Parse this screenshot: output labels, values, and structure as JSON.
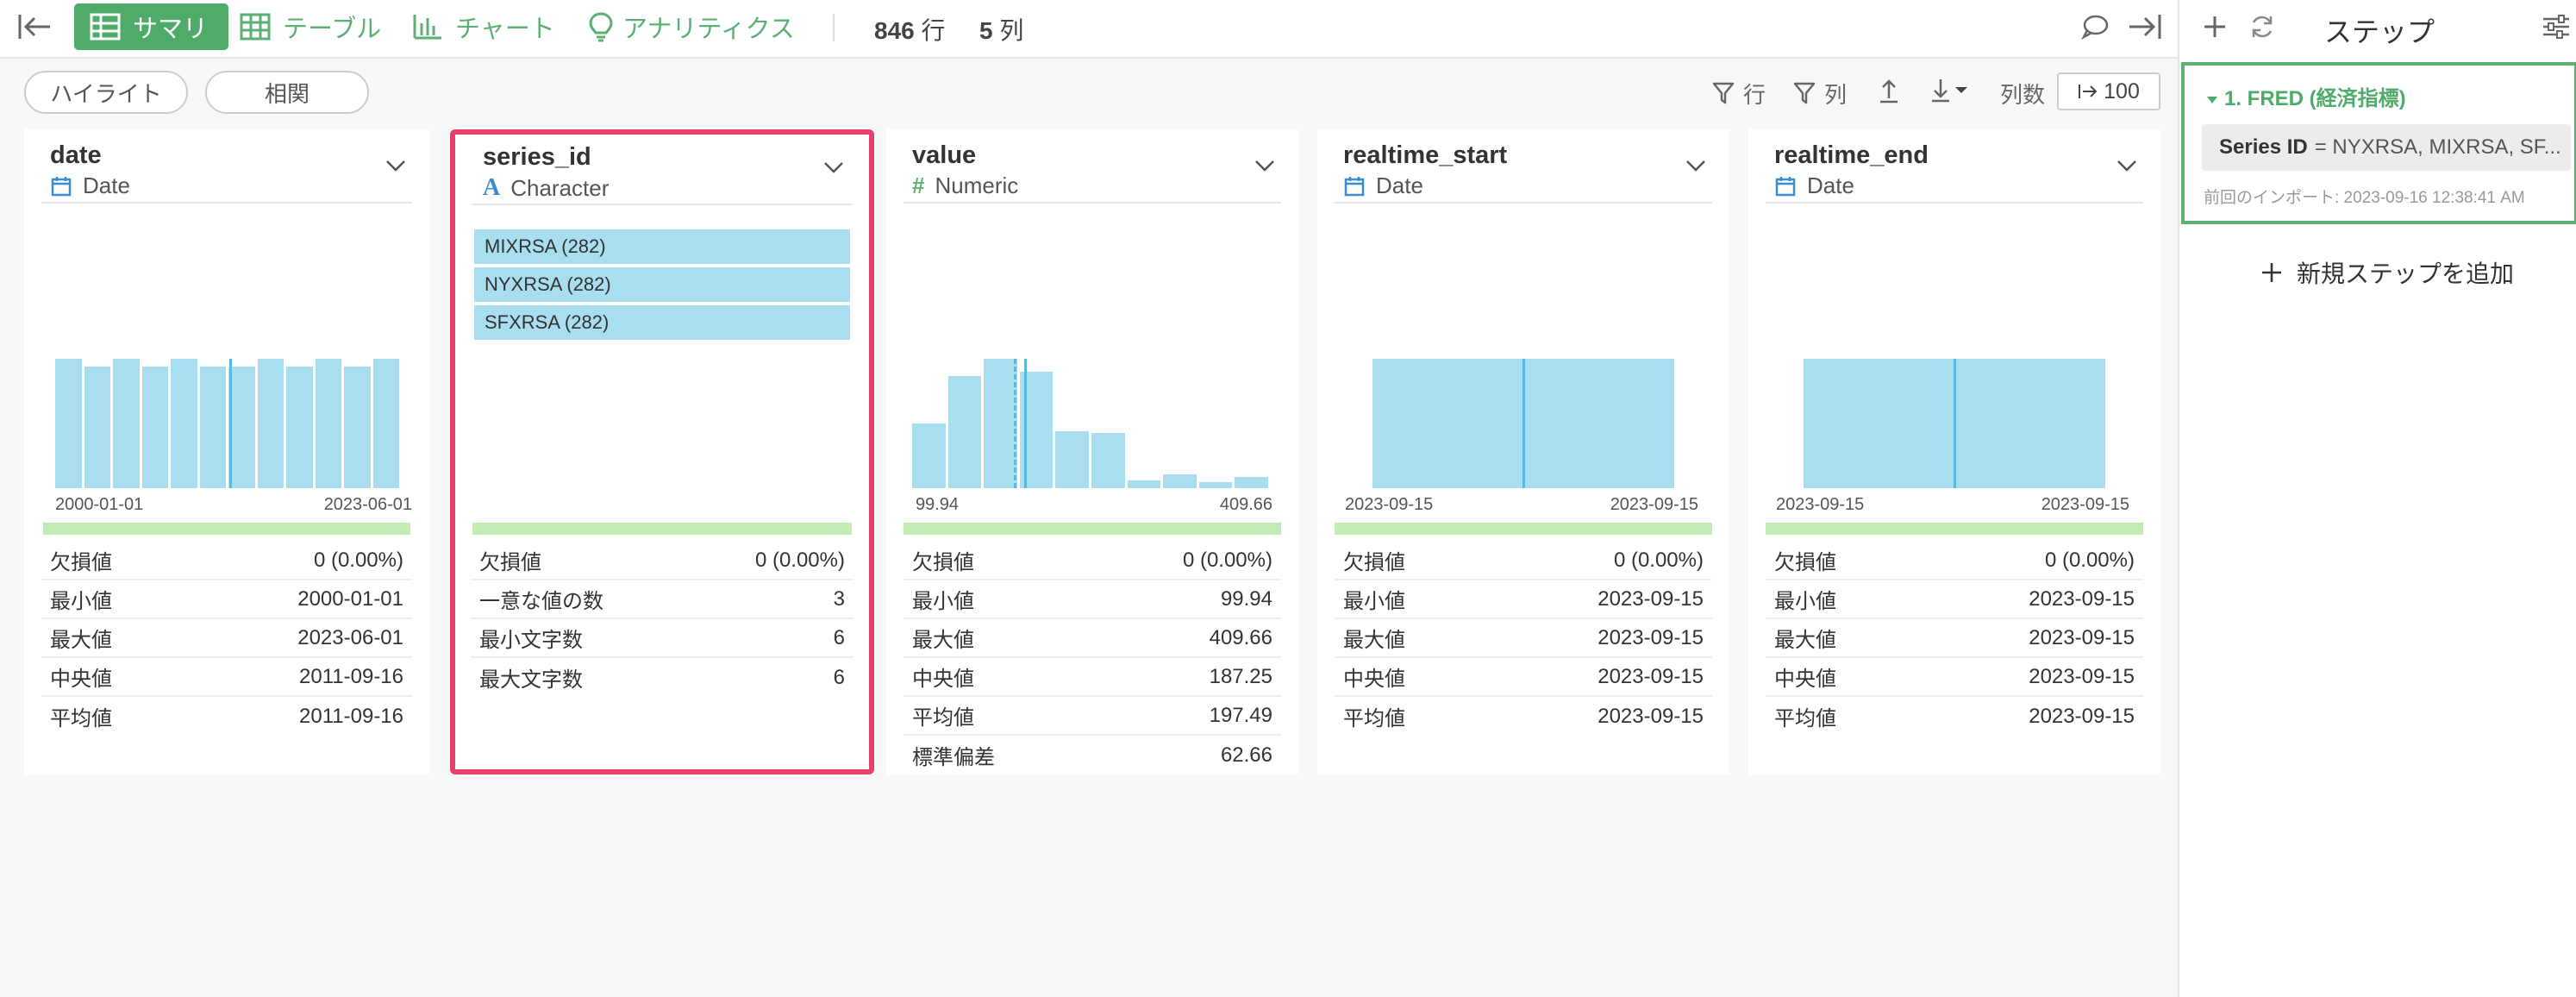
{
  "toolbar": {
    "collapse_left_icon": "collapse-left-icon",
    "tabs": [
      {
        "label": "サマリ",
        "icon": "grid-icon",
        "active": true
      },
      {
        "label": "テーブル",
        "icon": "table-icon",
        "active": false
      },
      {
        "label": "チャート",
        "icon": "bar-chart-icon",
        "active": false
      },
      {
        "label": "アナリティクス",
        "icon": "lightbulb-icon",
        "active": false
      }
    ],
    "rows_count": "846",
    "rows_unit": "行",
    "cols_count": "5",
    "cols_unit": "列",
    "accent_color": "#4eab6a"
  },
  "filters": {
    "highlight_label": "ハイライト",
    "correlation_label": "相関",
    "row_filter_label": "行",
    "col_filter_label": "列",
    "columns_label": "列数",
    "columns_value": "100"
  },
  "columns": [
    {
      "name": "date",
      "type": "Date",
      "type_icon": "calendar-icon",
      "axis_min": "2000-01-01",
      "axis_max": "2023-06-01",
      "histogram": [
        1,
        0.94,
        1,
        0.94,
        1,
        0.94,
        0.94,
        1,
        0.94,
        1,
        0.94,
        1
      ],
      "stats": [
        {
          "label": "欠損値",
          "value": "0 (0.00%)"
        },
        {
          "label": "最小値",
          "value": "2000-01-01"
        },
        {
          "label": "最大値",
          "value": "2023-06-01"
        },
        {
          "label": "中央値",
          "value": "2011-09-16"
        },
        {
          "label": "平均値",
          "value": "2011-09-16"
        }
      ]
    },
    {
      "name": "series_id",
      "type": "Character",
      "type_icon": "character-a-icon",
      "selected": true,
      "categories": [
        "MIXRSA (282)",
        "NYXRSA (282)",
        "SFXRSA (282)"
      ],
      "stats": [
        {
          "label": "欠損値",
          "value": "0 (0.00%)"
        },
        {
          "label": "一意な値の数",
          "value": "3"
        },
        {
          "label": "最小文字数",
          "value": "6"
        },
        {
          "label": "最大文字数",
          "value": "6"
        }
      ]
    },
    {
      "name": "value",
      "type": "Numeric",
      "type_icon": "hash-icon",
      "axis_min": "99.94",
      "axis_max": "409.66",
      "histogram": [
        0.5,
        0.87,
        1,
        0.9,
        0.44,
        0.43,
        0.06,
        0.11,
        0.05,
        0.09
      ],
      "stats": [
        {
          "label": "欠損値",
          "value": "0 (0.00%)"
        },
        {
          "label": "最小値",
          "value": "99.94"
        },
        {
          "label": "最大値",
          "value": "409.66"
        },
        {
          "label": "中央値",
          "value": "187.25"
        },
        {
          "label": "平均値",
          "value": "197.49"
        },
        {
          "label": "標準偏差",
          "value": "62.66"
        }
      ]
    },
    {
      "name": "realtime_start",
      "type": "Date",
      "type_icon": "calendar-icon",
      "axis_min": "2023-09-15",
      "axis_max": "2023-09-15",
      "stats": [
        {
          "label": "欠損値",
          "value": "0 (0.00%)"
        },
        {
          "label": "最小値",
          "value": "2023-09-15"
        },
        {
          "label": "最大値",
          "value": "2023-09-15"
        },
        {
          "label": "中央値",
          "value": "2023-09-15"
        },
        {
          "label": "平均値",
          "value": "2023-09-15"
        }
      ]
    },
    {
      "name": "realtime_end",
      "type": "Date",
      "type_icon": "calendar-icon",
      "axis_min": "2023-09-15",
      "axis_max": "2023-09-15",
      "stats": [
        {
          "label": "欠損値",
          "value": "0 (0.00%)"
        },
        {
          "label": "最小値",
          "value": "2023-09-15"
        },
        {
          "label": "最大値",
          "value": "2023-09-15"
        },
        {
          "label": "中央値",
          "value": "2023-09-15"
        },
        {
          "label": "平均値",
          "value": "2023-09-15"
        }
      ]
    }
  ],
  "steps_panel": {
    "title": "ステップ",
    "step_name": "1. FRED (経済指標)",
    "param_key": "Series ID",
    "param_value": "= NYXRSA, MIXRSA, SF...",
    "import_info": "前回のインポート: 2023-09-16 12:38:41 AM",
    "add_step_label": "新規ステップを追加",
    "accent_color": "#5cb073"
  }
}
